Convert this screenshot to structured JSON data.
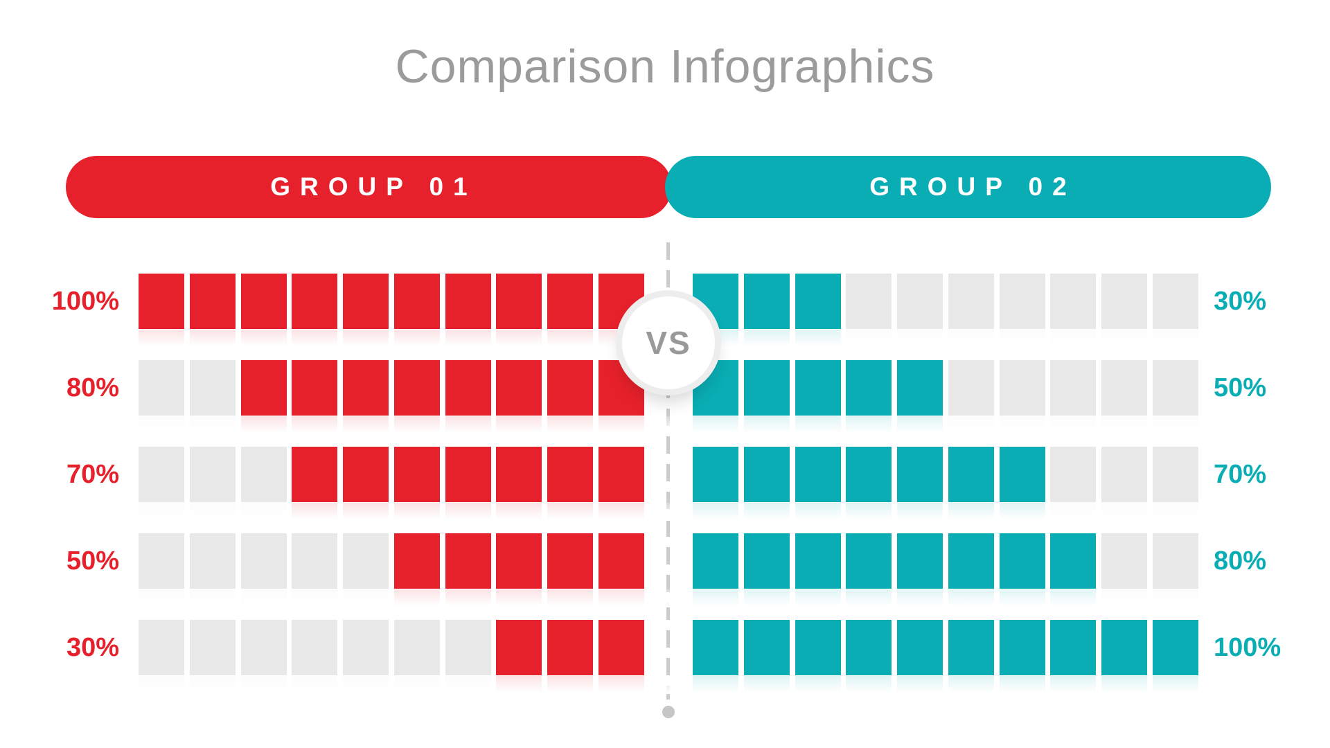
{
  "title": "Comparison Infographics",
  "vs_label": "VS",
  "groups": [
    {
      "label": "GROUP 01",
      "color": "#e6212b",
      "side": "left"
    },
    {
      "label": "GROUP 02",
      "color": "#09adb3",
      "side": "right"
    }
  ],
  "colors": {
    "red": "#e6212b",
    "teal": "#09adb3",
    "cell_gray": "#e8e8e8",
    "title_gray": "#9b9b9b",
    "vs_gray": "#999999",
    "dash_gray": "#cccccc",
    "dot_gray": "#c6c6c6",
    "background": "#ffffff"
  },
  "cells_per_row": 10,
  "rows": [
    {
      "left_label": "100%",
      "left_filled": 10,
      "right_label": "30%",
      "right_filled": 3
    },
    {
      "left_label": "80%",
      "left_filled": 8,
      "right_label": "50%",
      "right_filled": 5
    },
    {
      "left_label": "70%",
      "left_filled": 7,
      "right_label": "70%",
      "right_filled": 7
    },
    {
      "left_label": "50%",
      "left_filled": 5,
      "right_label": "80%",
      "right_filled": 8
    },
    {
      "left_label": "30%",
      "left_filled": 3,
      "right_label": "100%",
      "right_filled": 10
    }
  ],
  "chart_data": {
    "type": "bar",
    "subtype": "unit-square-comparison",
    "title": "Comparison Infographics",
    "unit": "%",
    "cells_per_row": 10,
    "cell_value": 10,
    "categories": [
      "row1",
      "row2",
      "row3",
      "row4",
      "row5"
    ],
    "series": [
      {
        "name": "GROUP 01",
        "color": "#e6212b",
        "values": [
          100,
          80,
          70,
          50,
          30
        ],
        "fill_direction": "right-to-left",
        "labels": [
          "100%",
          "80%",
          "70%",
          "50%",
          "30%"
        ]
      },
      {
        "name": "GROUP 02",
        "color": "#09adb3",
        "values": [
          30,
          50,
          70,
          80,
          100
        ],
        "fill_direction": "left-to-right",
        "labels": [
          "30%",
          "50%",
          "70%",
          "80%",
          "100%"
        ]
      }
    ],
    "layout": "mirrored horizontal unit grids split by dashed center divider with VS badge",
    "empty_cell_color": "#e8e8e8",
    "grid": false,
    "legend_position": "header-pills"
  }
}
